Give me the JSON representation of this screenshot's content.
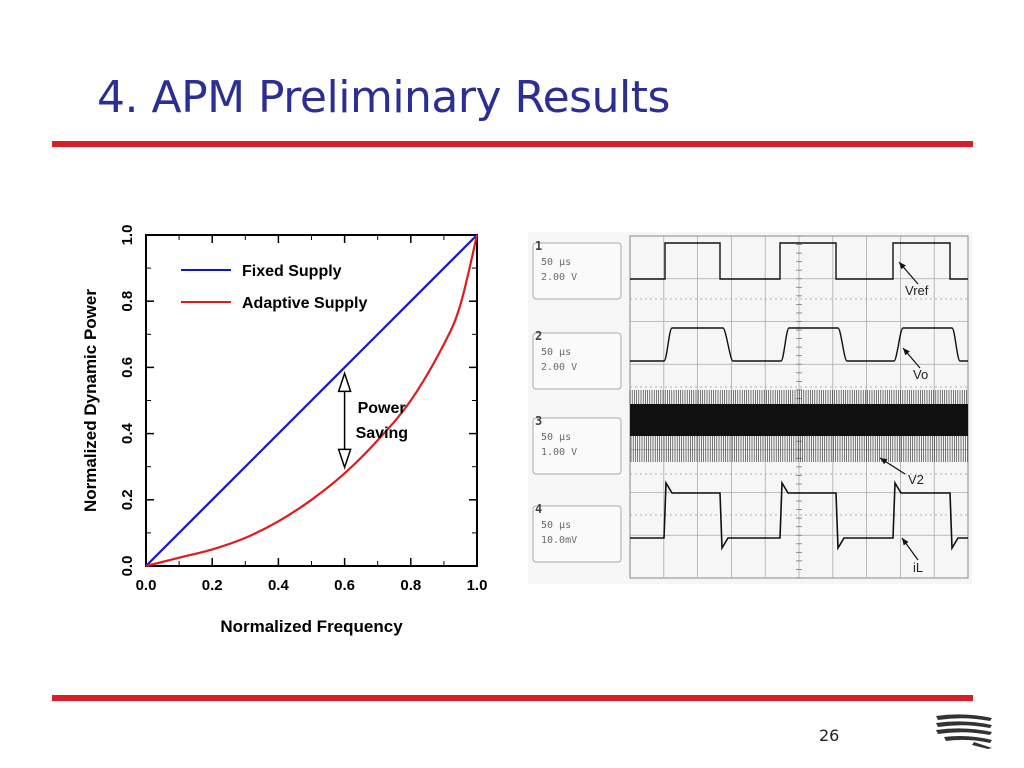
{
  "slide": {
    "title": "4. APM Preliminary Results",
    "page_number": "26"
  },
  "colors": {
    "title": "#2b2f93",
    "rule": "#d71f2a",
    "fixed_supply": "#1515c8",
    "adaptive_supply": "#e01b1b"
  },
  "chart_data": {
    "type": "line",
    "title": "",
    "xlabel": "Normalized Frequency",
    "ylabel": "Normalized Dynamic Power",
    "xlim": [
      0.0,
      1.0
    ],
    "ylim": [
      0.0,
      1.0
    ],
    "xticks": [
      "0.0",
      "0.2",
      "0.4",
      "0.6",
      "0.8",
      "1.0"
    ],
    "yticks": [
      "0.0",
      "0.2",
      "0.4",
      "0.6",
      "0.8",
      "1.0"
    ],
    "grid": false,
    "legend_position": "top-left",
    "series": [
      {
        "name": "Fixed Supply",
        "color": "#1515c8",
        "x": [
          0.0,
          0.2,
          0.4,
          0.6,
          0.8,
          1.0
        ],
        "y": [
          0.0,
          0.2,
          0.4,
          0.6,
          0.8,
          1.0
        ]
      },
      {
        "name": "Adaptive Supply",
        "color": "#e01b1b",
        "x": [
          0.0,
          0.1,
          0.2,
          0.3,
          0.4,
          0.5,
          0.6,
          0.7,
          0.8,
          0.9,
          0.95,
          1.0
        ],
        "y": [
          0.0,
          0.025,
          0.05,
          0.085,
          0.135,
          0.2,
          0.28,
          0.38,
          0.5,
          0.67,
          0.79,
          1.0
        ]
      }
    ],
    "annotation": {
      "text_line1": "Power",
      "text_line2": "Saving",
      "x": 0.6,
      "y_from": 0.28,
      "y_to": 0.6
    }
  },
  "oscilloscope": {
    "channels": [
      {
        "number": "1",
        "timebase": "50 µs",
        "scale": "2.00 V",
        "trace": "Vref"
      },
      {
        "number": "2",
        "timebase": "50 µs",
        "scale": "2.00 V",
        "trace": "Vo"
      },
      {
        "number": "3",
        "timebase": "50 µs",
        "scale": "1.00 V",
        "trace": "V2"
      },
      {
        "number": "4",
        "timebase": "50 µs",
        "scale": "10.0mV",
        "trace": "iL"
      }
    ]
  },
  "logo": {
    "icon": "stacked-wave-logo-icon"
  }
}
